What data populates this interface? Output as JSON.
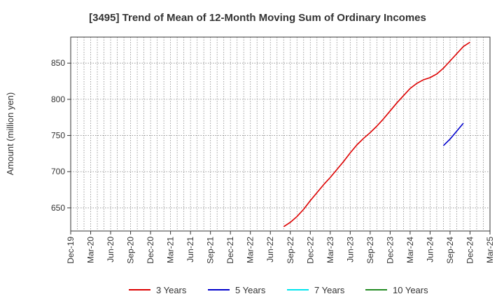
{
  "chart_data": {
    "type": "line",
    "title": "[3495]  Trend of Mean of 12-Month Moving Sum of Ordinary Incomes",
    "xlabel": "",
    "ylabel": "Amount (million yen)",
    "x_tick_labels": [
      "Dec-19",
      "Mar-20",
      "Jun-20",
      "Sep-20",
      "Dec-20",
      "Mar-21",
      "Jun-21",
      "Sep-21",
      "Dec-21",
      "Mar-22",
      "Jun-22",
      "Sep-22",
      "Dec-22",
      "Mar-23",
      "Jun-23",
      "Sep-23",
      "Dec-23",
      "Mar-24",
      "Jun-24",
      "Sep-24",
      "Dec-24",
      "Mar-25"
    ],
    "y_ticks": [
      650,
      700,
      750,
      800,
      850
    ],
    "ylim": [
      618,
      886
    ],
    "grid": true,
    "legend_position": "bottom",
    "series": [
      {
        "name": "3 Years",
        "color": "#dd0000",
        "start_month": "Aug-22",
        "values": [
          624,
          630,
          638,
          648,
          660,
          671,
          682,
          692,
          703,
          714,
          726,
          737,
          746,
          754,
          763,
          773,
          784,
          795,
          805,
          815,
          822,
          827,
          830,
          835,
          843,
          853,
          863,
          873,
          879
        ]
      },
      {
        "name": "5 Years",
        "color": "#0000cc",
        "start_month": "Aug-24",
        "values": [
          736,
          745,
          756,
          767
        ]
      },
      {
        "name": "7 Years",
        "color": "#00e5ee",
        "start_month": "",
        "values": []
      },
      {
        "name": "10 Years",
        "color": "#228b22",
        "start_month": "",
        "values": []
      }
    ]
  }
}
